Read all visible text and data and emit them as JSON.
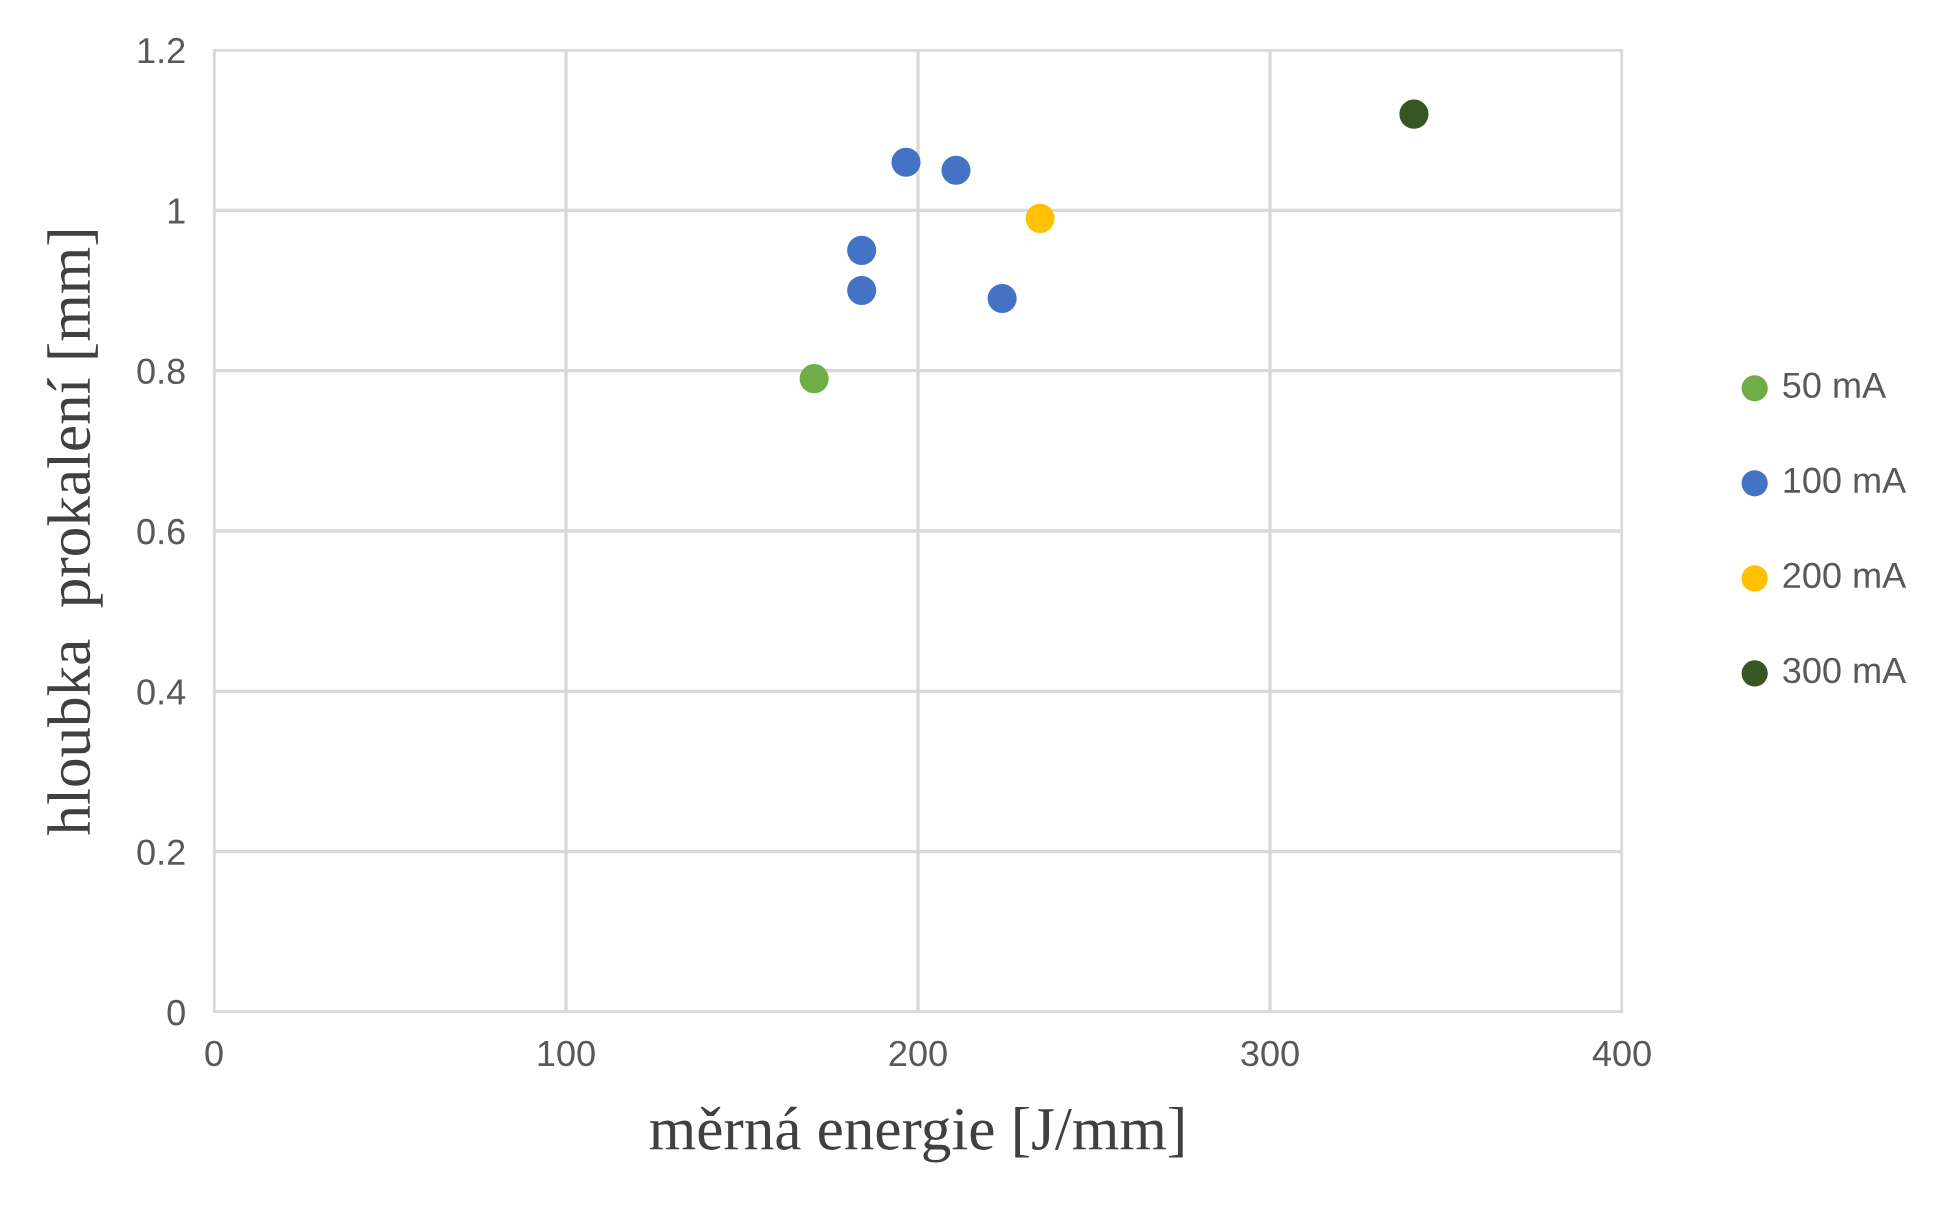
{
  "chart_data": {
    "type": "scatter",
    "xlabel": "měrná energie [J/mm]",
    "ylabel": "hloubka  prokalení [mm]",
    "xlim": [
      0,
      400
    ],
    "xticks": [
      0,
      100,
      200,
      300,
      400
    ],
    "ylim": [
      0,
      1.2
    ],
    "yticks": [
      0,
      {
        "value": 0.2,
        "label": "0.2"
      },
      {
        "value": 0.4,
        "label": "0.4"
      },
      {
        "value": 0.6,
        "label": "0.6"
      },
      {
        "value": 0.8,
        "label": "0.8"
      },
      1,
      {
        "value": 1.2,
        "label": "1.2"
      }
    ],
    "grid": true,
    "legend": "right",
    "marker": "circle",
    "series": [
      {
        "name": "50 mA",
        "color": "#70ad47",
        "x": [
          170.5
        ],
        "values": [
          0.79
        ]
      },
      {
        "name": "100 mA",
        "color": "#4472c4",
        "x": [
          196.6,
          210.8,
          184,
          184,
          223.9
        ],
        "values": [
          1.06,
          1.05,
          0.95,
          0.9,
          0.89
        ]
      },
      {
        "name": "200 mA",
        "color": "#ffc000",
        "x": [
          234.7
        ],
        "values": [
          0.99
        ]
      },
      {
        "name": "300 mA",
        "color": "#375623",
        "x": [
          340.9
        ],
        "values": [
          1.12
        ]
      }
    ]
  }
}
